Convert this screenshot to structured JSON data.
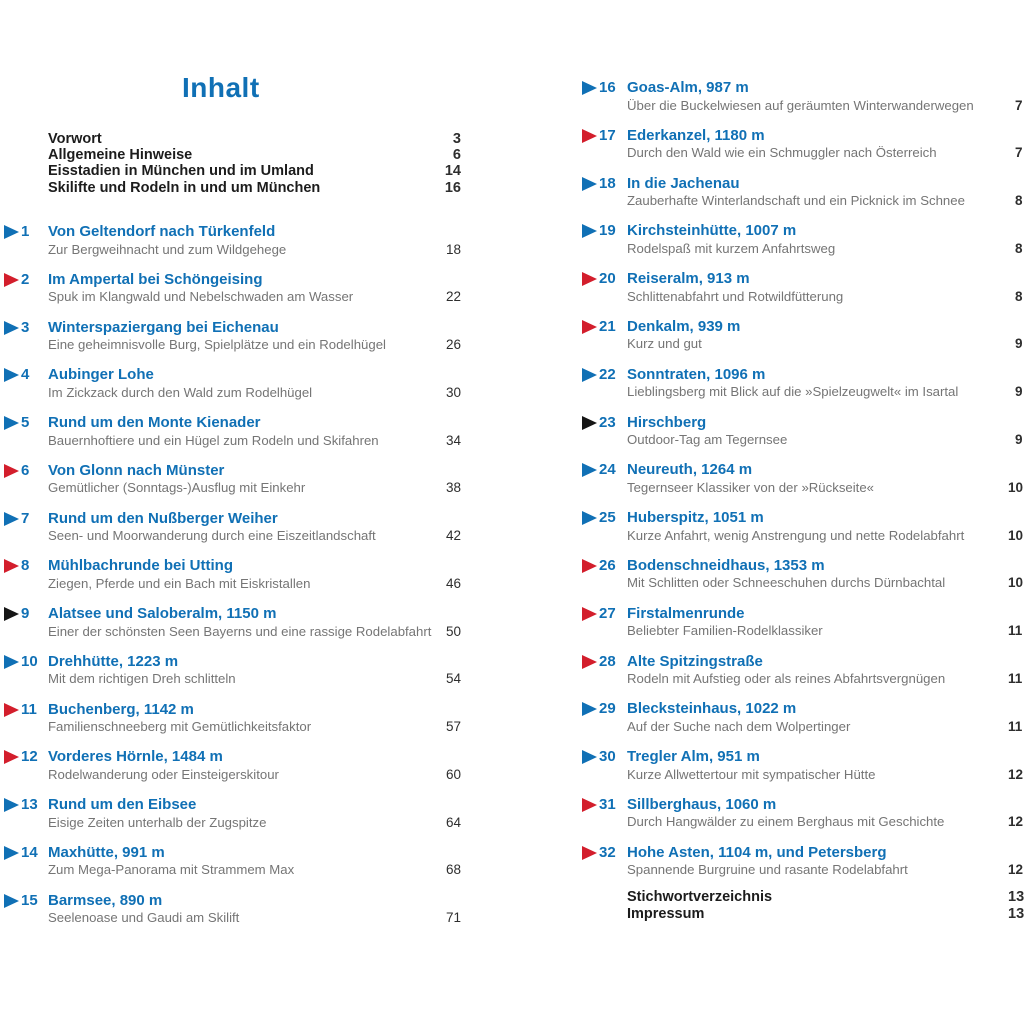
{
  "title": "Inhalt",
  "colors": {
    "blue": "#1070b5",
    "red": "#d31e2c",
    "black": "#161616",
    "subtitle_gray": "#757575",
    "page_number": "#2e2e2e",
    "heading_blue": "#1070b5"
  },
  "front_matter": [
    {
      "label": "Vorwort",
      "page": "3"
    },
    {
      "label": "Allgemeine Hinweise",
      "page": "6"
    },
    {
      "label": "Eisstadien in München und im Umland",
      "page": "14"
    },
    {
      "label": "Skilifte und Rodeln in und um München",
      "page": "16"
    }
  ],
  "toc": {
    "left": [
      {
        "num": "1",
        "marker": "blue",
        "title": "Von Geltendorf nach Türkenfeld",
        "subtitle": "Zur Bergweihnacht und zum Wildgehege",
        "page": "18"
      },
      {
        "num": "2",
        "marker": "red",
        "title": "Im Ampertal bei Schöngeising",
        "subtitle": "Spuk im Klangwald und Nebelschwaden am Wasser",
        "page": "22"
      },
      {
        "num": "3",
        "marker": "blue",
        "title": "Winterspaziergang bei Eichenau",
        "subtitle": "Eine geheimnisvolle Burg, Spielplätze und ein Rodelhügel",
        "page": "26"
      },
      {
        "num": "4",
        "marker": "blue",
        "title": "Aubinger Lohe",
        "subtitle": "Im Zickzack durch den Wald zum Rodelhügel",
        "page": "30"
      },
      {
        "num": "5",
        "marker": "blue",
        "title": "Rund um den Monte Kienader",
        "subtitle": "Bauernhoftiere und ein Hügel zum Rodeln und Skifahren",
        "page": "34"
      },
      {
        "num": "6",
        "marker": "red",
        "title": "Von Glonn nach Münster",
        "subtitle": "Gemütlicher (Sonntags-)Ausflug mit Einkehr",
        "page": "38"
      },
      {
        "num": "7",
        "marker": "blue",
        "title": "Rund um den Nußberger Weiher",
        "subtitle": "Seen- und Moorwanderung durch eine Eiszeitlandschaft",
        "page": "42"
      },
      {
        "num": "8",
        "marker": "red",
        "title": "Mühlbachrunde bei Utting",
        "subtitle": "Ziegen, Pferde und ein Bach mit Eiskristallen",
        "page": "46"
      },
      {
        "num": "9",
        "marker": "black",
        "title": "Alatsee und Saloberalm, 1150 m",
        "subtitle": "Einer der schönsten Seen Bayerns und eine rassige Rodelabfahrt",
        "page": "50"
      },
      {
        "num": "10",
        "marker": "blue",
        "title": "Drehhütte, 1223 m",
        "subtitle": "Mit dem richtigen Dreh schlitteln",
        "page": "54"
      },
      {
        "num": "11",
        "marker": "red",
        "title": "Buchenberg, 1142 m",
        "subtitle": "Familienschneeberg mit Gemütlichkeitsfaktor",
        "page": "57"
      },
      {
        "num": "12",
        "marker": "red",
        "title": "Vorderes Hörnle, 1484 m",
        "subtitle": "Rodelwanderung oder Einsteigerskitour",
        "page": "60"
      },
      {
        "num": "13",
        "marker": "blue",
        "title": "Rund um den Eibsee",
        "subtitle": "Eisige Zeiten unterhalb der Zugspitze",
        "page": "64"
      },
      {
        "num": "14",
        "marker": "blue",
        "title": "Maxhütte, 991 m",
        "subtitle": "Zum Mega-Panorama mit Strammem Max",
        "page": "68"
      },
      {
        "num": "15",
        "marker": "blue",
        "title": "Barmsee, 890 m",
        "subtitle": "Seelenoase und Gaudi am Skilift",
        "page": "71"
      }
    ],
    "right": [
      {
        "num": "16",
        "marker": "blue",
        "title": "Goas-Alm, 987 m",
        "subtitle": "Über die Buckelwiesen auf geräumten Winterwanderwegen",
        "page": "7"
      },
      {
        "num": "17",
        "marker": "red",
        "title": "Ederkanzel, 1180 m",
        "subtitle": "Durch den Wald wie ein Schmuggler nach Österreich",
        "page": "7"
      },
      {
        "num": "18",
        "marker": "blue",
        "title": "In die Jachenau",
        "subtitle": "Zauberhafte Winterlandschaft und ein Picknick im Schnee",
        "page": "8"
      },
      {
        "num": "19",
        "marker": "blue",
        "title": "Kirchsteinhütte, 1007 m",
        "subtitle": "Rodelspaß mit kurzem Anfahrtsweg",
        "page": "8"
      },
      {
        "num": "20",
        "marker": "red",
        "title": "Reiseralm, 913 m",
        "subtitle": "Schlittenabfahrt und Rotwildfütterung",
        "page": "8"
      },
      {
        "num": "21",
        "marker": "red",
        "title": "Denkalm, 939 m",
        "subtitle": "Kurz und gut",
        "page": "9"
      },
      {
        "num": "22",
        "marker": "blue",
        "title": "Sonntraten, 1096 m",
        "subtitle": "Lieblingsberg mit Blick auf die »Spielzeugwelt« im Isartal",
        "page": "9"
      },
      {
        "num": "23",
        "marker": "black",
        "title": "Hirschberg",
        "subtitle": "Outdoor-Tag am Tegernsee",
        "page": "9"
      },
      {
        "num": "24",
        "marker": "blue",
        "title": "Neureuth, 1264 m",
        "subtitle": "Tegernseer Klassiker von der »Rückseite«",
        "page": "10"
      },
      {
        "num": "25",
        "marker": "blue",
        "title": "Huberspitz, 1051 m",
        "subtitle": "Kurze Anfahrt, wenig Anstrengung und nette Rodelabfahrt",
        "page": "10"
      },
      {
        "num": "26",
        "marker": "red",
        "title": "Bodenschneidhaus, 1353 m",
        "subtitle": "Mit Schlitten oder Schneeschuhen durchs Dürnbachtal",
        "page": "10"
      },
      {
        "num": "27",
        "marker": "red",
        "title": "Firstalmenrunde",
        "subtitle": "Beliebter Familien-Rodelklassiker",
        "page": "11"
      },
      {
        "num": "28",
        "marker": "red",
        "title": "Alte Spitzingstraße",
        "subtitle": "Rodeln mit Aufstieg oder als reines Abfahrtsvergnügen",
        "page": "11"
      },
      {
        "num": "29",
        "marker": "blue",
        "title": "Blecksteinhaus, 1022 m",
        "subtitle": "Auf der Suche nach dem Wolpertinger",
        "page": "11"
      },
      {
        "num": "30",
        "marker": "blue",
        "title": "Tregler Alm, 951 m",
        "subtitle": "Kurze Allwettertour mit sympatischer Hütte",
        "page": "12"
      },
      {
        "num": "31",
        "marker": "red",
        "title": "Sillberghaus, 1060 m",
        "subtitle": "Durch Hangwälder zu einem Berghaus mit Geschichte",
        "page": "12"
      },
      {
        "num": "32",
        "marker": "red",
        "title": "Hohe Asten, 1104 m, und Petersberg",
        "subtitle": "Spannende Burgruine und rasante Rodelabfahrt",
        "page": "12"
      }
    ]
  },
  "back_matter": [
    {
      "label": "Stichwortverzeichnis",
      "page": "13"
    },
    {
      "label": "Impressum",
      "page": "13"
    }
  ]
}
